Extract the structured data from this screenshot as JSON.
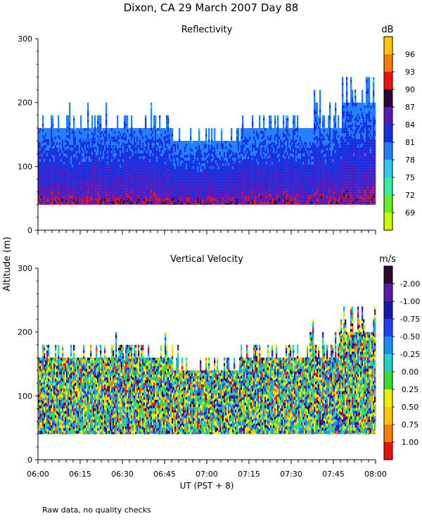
{
  "figure": {
    "title": "Dixon, CA 29 March 2007  Day  88",
    "ylabel": "Altitude (m)",
    "xlabel": "UT  (PST + 8)",
    "footnote": "Raw data, no quality checks"
  },
  "chart_data": [
    {
      "type": "heatmap",
      "title": "Reflectivity",
      "ylabel": "Altitude (m)",
      "xlabel": "",
      "ylim": [
        0,
        300
      ],
      "y_ticks": [
        "0",
        "100",
        "200",
        "300"
      ],
      "x_range": [
        "06:00",
        "08:00"
      ],
      "x_ticks": [],
      "colorbar": {
        "unit": "dB",
        "labels": [
          "69",
          "72",
          "75",
          "78",
          "81",
          "84",
          "87",
          "90",
          "93",
          "96"
        ],
        "colors": [
          "#c8ff00",
          "#66ee22",
          "#33f0a0",
          "#2ec8f0",
          "#1f7fff",
          "#1530e0",
          "#5a18b8",
          "#2a0a30",
          "#ee1010",
          "#ff7a00",
          "#ffc800"
        ]
      },
      "echo_base_m": 40,
      "echo_top_m": [
        160,
        160,
        160,
        160,
        140,
        140,
        160,
        160,
        160,
        200
      ],
      "max_echo_top_m": 240
    },
    {
      "type": "heatmap",
      "title": "Vertical Velocity",
      "ylabel": "",
      "xlabel": "UT  (PST + 8)",
      "ylim": [
        0,
        300
      ],
      "y_ticks": [
        "0",
        "100",
        "200",
        "300"
      ],
      "x_range": [
        "06:00",
        "08:00"
      ],
      "x_ticks": [
        "06:00",
        "06:15",
        "06:30",
        "06:45",
        "07:00",
        "07:15",
        "07:30",
        "07:45",
        "08:00"
      ],
      "colorbar": {
        "unit": "m/s",
        "labels": [
          "1.00",
          "0.75",
          "0.50",
          "0.25",
          "0.00",
          "-0.25",
          "-0.50",
          "-0.75",
          "-1.00",
          "-2.00"
        ],
        "colors": [
          "#ee1010",
          "#ff7a00",
          "#ffc800",
          "#e8f000",
          "#33e033",
          "#22d0c8",
          "#1890f0",
          "#1f40ff",
          "#1818b0",
          "#5a18a8",
          "#2a0a30"
        ]
      },
      "echo_base_m": 40,
      "echo_top_m": [
        160,
        160,
        160,
        160,
        140,
        140,
        160,
        160,
        160,
        200
      ],
      "max_echo_top_m": 240
    }
  ]
}
